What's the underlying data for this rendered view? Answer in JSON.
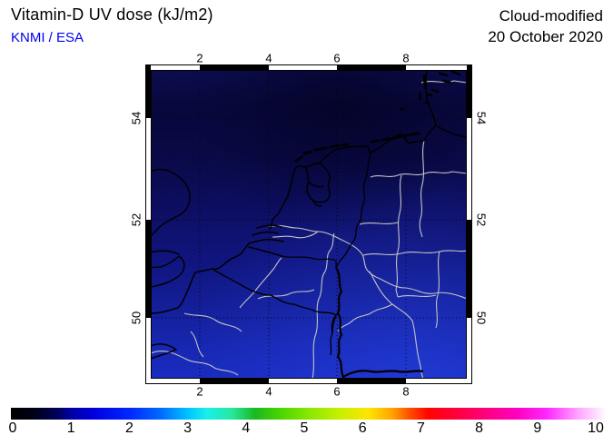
{
  "header": {
    "title": "Vitamin-D UV dose (kJ/m2)",
    "credit": "KNMI / ESA",
    "mode_label": "Cloud-modified",
    "date_label": "20 October 2020"
  },
  "map": {
    "top_ticks": [
      "2",
      "4",
      "6",
      "8"
    ],
    "bottom_ticks": [
      "2",
      "4",
      "6",
      "8"
    ],
    "left_ticks": [
      "54",
      "52",
      "50"
    ],
    "right_ticks": [
      "54",
      "52",
      "50"
    ]
  },
  "colorbar": {
    "min": 0,
    "max": 10,
    "units": "kJ/m2",
    "tick_labels": [
      "0",
      "1",
      "2",
      "3",
      "4",
      "5",
      "6",
      "7",
      "8",
      "9",
      "10"
    ],
    "stops": [
      {
        "p": 0,
        "c": "#000000"
      },
      {
        "p": 4,
        "c": "#000018"
      },
      {
        "p": 8,
        "c": "#000060"
      },
      {
        "p": 10,
        "c": "#0000a0"
      },
      {
        "p": 14,
        "c": "#0000e0"
      },
      {
        "p": 20,
        "c": "#0028ff"
      },
      {
        "p": 25,
        "c": "#0068ff"
      },
      {
        "p": 30,
        "c": "#00c8ff"
      },
      {
        "p": 33,
        "c": "#18f0e8"
      },
      {
        "p": 37,
        "c": "#28e8a0"
      },
      {
        "p": 41,
        "c": "#18b820"
      },
      {
        "p": 45,
        "c": "#48d400"
      },
      {
        "p": 50,
        "c": "#88e800"
      },
      {
        "p": 55,
        "c": "#c4f000"
      },
      {
        "p": 60,
        "c": "#ffe400"
      },
      {
        "p": 64,
        "c": "#ffa400"
      },
      {
        "p": 67,
        "c": "#ff4c00"
      },
      {
        "p": 70,
        "c": "#ff0400"
      },
      {
        "p": 75,
        "c": "#ff0040"
      },
      {
        "p": 80,
        "c": "#ff0080"
      },
      {
        "p": 85,
        "c": "#ff00c0"
      },
      {
        "p": 90,
        "c": "#ff28ff"
      },
      {
        "p": 95,
        "c": "#ffa0ff"
      },
      {
        "p": 100,
        "c": "#ffffff"
      }
    ]
  },
  "chart_data": {
    "type": "heatmap",
    "title": "Vitamin-D UV dose (kJ/m2)",
    "annotations": [
      "Cloud-modified",
      "20 October 2020",
      "KNMI / ESA"
    ],
    "x_ticks": [
      2,
      4,
      6,
      8
    ],
    "y_ticks_top_to_bottom": [
      54,
      52,
      50
    ],
    "colorbar_range": [
      0,
      10
    ],
    "colorbar_tick_values": [
      0,
      1,
      2,
      3,
      4,
      5,
      6,
      7,
      8,
      9,
      10
    ],
    "map_region": "North Sea, Netherlands, Belgium, western Germany, SE England",
    "approx_dose_range_shown": [
      0.3,
      1.6
    ],
    "legend_position": "bottom"
  },
  "colors": {
    "credit_text": "#0000ee",
    "map_sea_dark": "#08083c",
    "map_sea_bottom": "#1a2cc0",
    "coastline": "#000000",
    "river_border_lines": "#c4c4c4"
  }
}
